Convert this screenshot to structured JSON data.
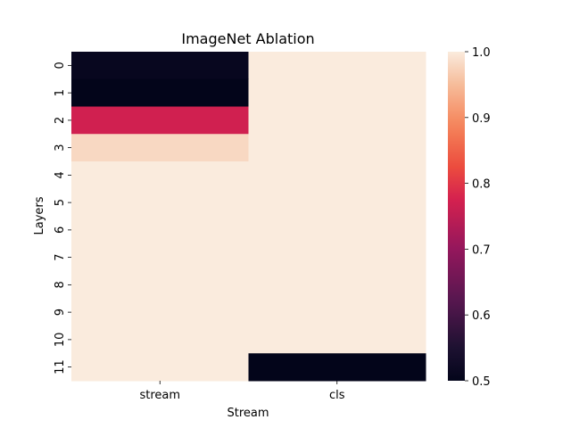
{
  "chart_data": {
    "type": "heatmap",
    "title": "ImageNet Ablation",
    "xlabel": "Stream",
    "ylabel": "Layers",
    "columns": [
      "stream",
      "cls"
    ],
    "rows": [
      "0",
      "1",
      "2",
      "3",
      "4",
      "5",
      "6",
      "7",
      "8",
      "9",
      "10",
      "11"
    ],
    "values": [
      [
        0.51,
        1.0
      ],
      [
        0.5,
        1.0
      ],
      [
        0.77,
        1.0
      ],
      [
        0.98,
        1.0
      ],
      [
        1.0,
        1.0
      ],
      [
        1.0,
        1.0
      ],
      [
        1.0,
        1.0
      ],
      [
        1.0,
        1.0
      ],
      [
        1.0,
        1.0
      ],
      [
        1.0,
        1.0
      ],
      [
        1.0,
        1.0
      ],
      [
        1.0,
        0.5
      ]
    ],
    "vmin": 0.5,
    "vmax": 1.0,
    "colorbar_ticks": [
      "0.5",
      "0.6",
      "0.7",
      "0.8",
      "0.9",
      "1.0"
    ],
    "colormap": "rocket",
    "grid": false,
    "legend": "colorbar-right"
  }
}
